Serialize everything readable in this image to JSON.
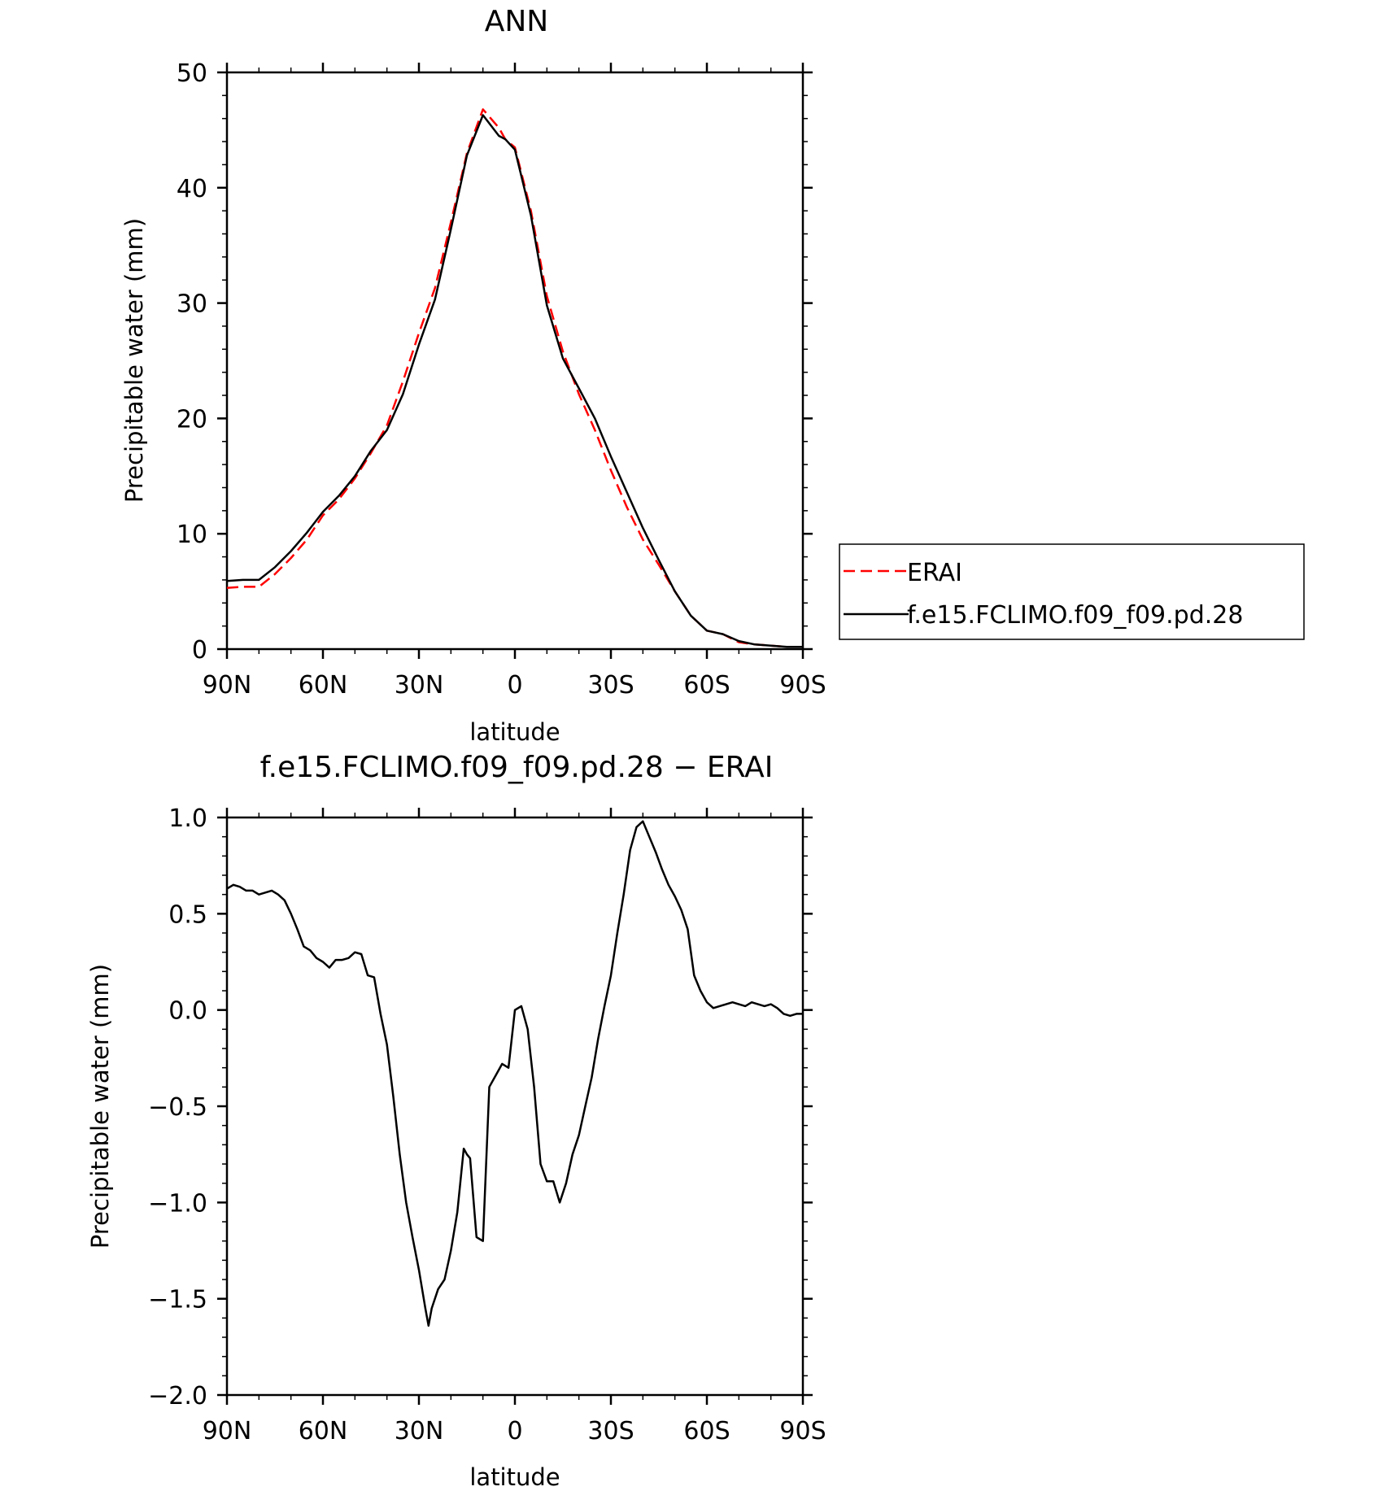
{
  "chart_data": [
    {
      "type": "line",
      "title": "ANN",
      "xlabel": "latitude",
      "ylabel": "Precipitable water (mm)",
      "x_ticks": [
        90,
        60,
        30,
        0,
        -30,
        -60,
        -90
      ],
      "x_tick_labels": [
        "90N",
        "60N",
        "30N",
        "0",
        "30S",
        "60S",
        "90S"
      ],
      "xlim": [
        90,
        -90
      ],
      "y_ticks": [
        0,
        10,
        20,
        30,
        40,
        50
      ],
      "y_tick_labels": [
        "0",
        "10",
        "20",
        "30",
        "40",
        "50"
      ],
      "ylim": [
        0,
        50
      ],
      "legend_position": "right",
      "x": [
        90,
        85,
        80,
        75,
        70,
        65,
        60,
        55,
        50,
        45,
        40,
        35,
        30,
        25,
        20,
        15,
        10,
        5,
        3,
        0,
        -5,
        -10,
        -15,
        -20,
        -25,
        -30,
        -35,
        -40,
        -45,
        -50,
        -55,
        -60,
        -65,
        -70,
        -75,
        -80,
        -85,
        -88,
        -90
      ],
      "series": [
        {
          "name": "ERAI",
          "color": "#ff0000",
          "dash": "dashed",
          "values": [
            5.3,
            5.4,
            5.4,
            6.5,
            7.9,
            9.5,
            11.6,
            13.0,
            14.8,
            17.0,
            19.4,
            23.2,
            27.4,
            31.3,
            37.0,
            43.0,
            46.8,
            45.2,
            44.2,
            43.5,
            38.0,
            30.6,
            25.8,
            22.1,
            19.0,
            15.5,
            12.3,
            9.5,
            7.3,
            5.0,
            2.9,
            1.6,
            1.3,
            0.6,
            0.4,
            0.3,
            0.2,
            0.2,
            0.2
          ]
        },
        {
          "name": "f.e15.FCLIMO.f09_f09.pd.28",
          "color": "#000000",
          "dash": "solid",
          "values": [
            5.9,
            6.0,
            6.0,
            7.1,
            8.5,
            10.1,
            11.9,
            13.3,
            15.0,
            17.2,
            19.0,
            22.1,
            26.4,
            30.3,
            36.4,
            42.8,
            46.3,
            44.5,
            44.2,
            43.3,
            37.6,
            29.8,
            25.2,
            22.6,
            20.0,
            16.7,
            13.6,
            10.5,
            7.7,
            5.0,
            2.9,
            1.6,
            1.3,
            0.7,
            0.4,
            0.3,
            0.2,
            0.2,
            0.2
          ]
        }
      ]
    },
    {
      "type": "line",
      "title": "f.e15.FCLIMO.f09_f09.pd.28 − ERAI",
      "xlabel": "latitude",
      "ylabel": "Precipitable water (mm)",
      "x_ticks": [
        90,
        60,
        30,
        0,
        -30,
        -60,
        -90
      ],
      "x_tick_labels": [
        "90N",
        "60N",
        "30N",
        "0",
        "30S",
        "60S",
        "90S"
      ],
      "xlim": [
        90,
        -90
      ],
      "y_ticks": [
        1.0,
        0.5,
        0.0,
        -0.5,
        -1.0,
        -1.5,
        -2.0
      ],
      "y_tick_labels": [
        "1.0",
        "0.5",
        "0.0",
        "−0.5",
        "−1.0",
        "−1.5",
        "−2.0"
      ],
      "ylim": [
        -2.0,
        1.0
      ],
      "x": [
        90,
        88,
        86,
        84,
        82,
        80,
        78,
        76,
        74,
        72,
        70,
        68,
        66,
        64,
        62,
        60,
        58,
        56,
        54,
        52,
        50,
        48,
        46,
        44,
        42,
        40,
        38,
        36,
        34,
        32,
        30,
        28,
        27,
        26,
        24,
        22,
        20,
        18,
        16,
        15,
        14,
        12,
        10,
        8,
        6,
        4,
        2,
        0,
        -2,
        -4,
        -6,
        -8,
        -10,
        -12,
        -14,
        -16,
        -18,
        -20,
        -22,
        -24,
        -26,
        -28,
        -30,
        -32,
        -34,
        -36,
        -38,
        -40,
        -42,
        -44,
        -46,
        -48,
        -50,
        -52,
        -54,
        -56,
        -58,
        -60,
        -62,
        -64,
        -66,
        -68,
        -70,
        -72,
        -74,
        -76,
        -78,
        -80,
        -82,
        -84,
        -86,
        -88,
        -90
      ],
      "series": [
        {
          "name": "",
          "color": "#000000",
          "dash": "solid",
          "values": [
            0.63,
            0.65,
            0.64,
            0.62,
            0.62,
            0.6,
            0.61,
            0.62,
            0.6,
            0.57,
            0.5,
            0.42,
            0.33,
            0.31,
            0.27,
            0.25,
            0.22,
            0.26,
            0.26,
            0.27,
            0.3,
            0.29,
            0.18,
            0.17,
            -0.02,
            -0.18,
            -0.45,
            -0.75,
            -1.0,
            -1.18,
            -1.35,
            -1.55,
            -1.64,
            -1.55,
            -1.45,
            -1.4,
            -1.25,
            -1.05,
            -0.72,
            -0.75,
            -0.77,
            -1.18,
            -1.2,
            -0.4,
            -0.34,
            -0.28,
            -0.3,
            0.0,
            0.02,
            -0.1,
            -0.4,
            -0.8,
            -0.89,
            -0.89,
            -1.0,
            -0.9,
            -0.75,
            -0.65,
            -0.5,
            -0.35,
            -0.15,
            0.02,
            0.18,
            0.4,
            0.6,
            0.83,
            0.95,
            0.98,
            0.9,
            0.82,
            0.73,
            0.65,
            0.59,
            0.52,
            0.42,
            0.18,
            0.1,
            0.04,
            0.01,
            0.02,
            0.03,
            0.04,
            0.03,
            0.02,
            0.04,
            0.03,
            0.02,
            0.03,
            0.01,
            -0.02,
            -0.03,
            -0.02,
            -0.02
          ]
        }
      ]
    }
  ]
}
